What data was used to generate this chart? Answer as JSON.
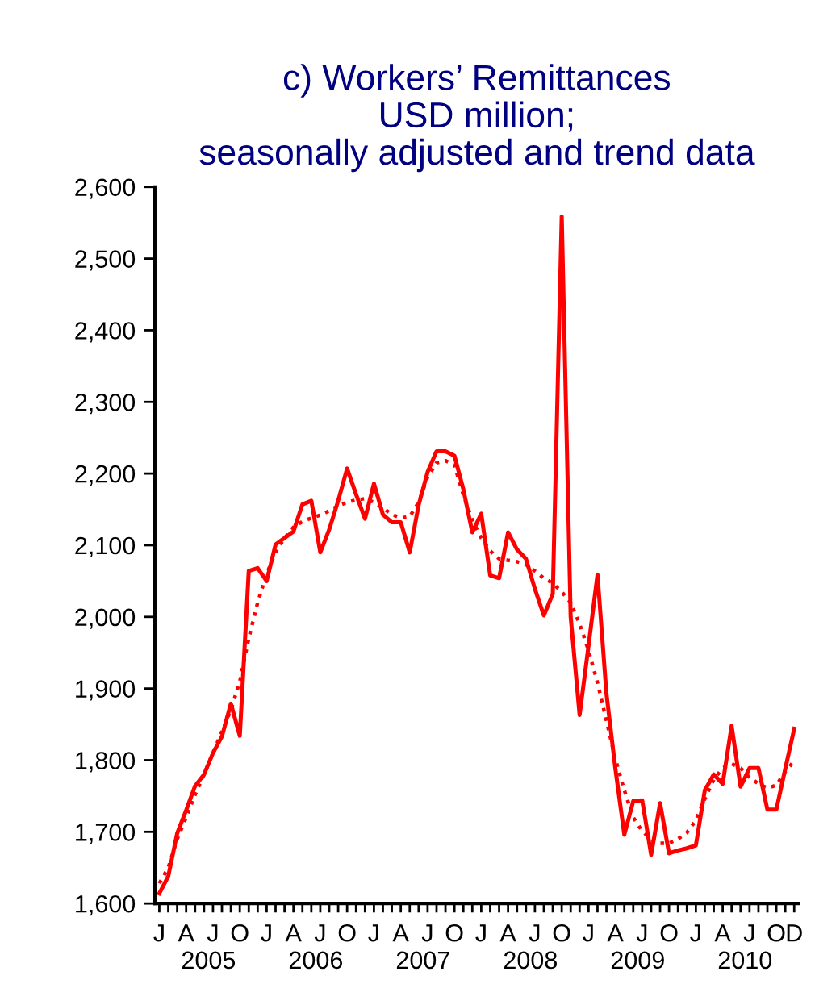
{
  "chart_data": {
    "type": "line",
    "title": "c) Workers’ Remittances\nUSD million;\nseasonally adjusted and trend data",
    "categories": [
      "J",
      null,
      null,
      "A",
      null,
      null,
      "J",
      null,
      null,
      "O",
      null,
      null,
      "J",
      null,
      null,
      "A",
      null,
      null,
      "J",
      null,
      null,
      "O",
      null,
      null,
      "J",
      null,
      null,
      "A",
      null,
      null,
      "J",
      null,
      null,
      "O",
      null,
      null,
      "J",
      null,
      null,
      "A",
      null,
      null,
      "J",
      null,
      null,
      "O",
      null,
      null,
      "J",
      null,
      null,
      "A",
      null,
      null,
      "J",
      null,
      null,
      "O",
      null,
      null,
      "J",
      null,
      null,
      "A",
      null,
      null,
      "J",
      null,
      null,
      "O",
      null,
      "D"
    ],
    "annotations": [
      "2005",
      "2006",
      "2007",
      "2008",
      "2009",
      "2010"
    ],
    "series": [
      {
        "color": "#ff0000",
        "line_style": "solid",
        "values": [
          1614,
          1638,
          1698,
          1730,
          1764,
          1780,
          1810,
          1833,
          1879,
          1834,
          2064,
          2068,
          2050,
          2101,
          2110,
          2119,
          2157,
          2162,
          2090,
          2122,
          2162,
          2207,
          2171,
          2137,
          2186,
          2143,
          2132,
          2132,
          2090,
          2156,
          2202,
          2231,
          2231,
          2225,
          2178,
          2118,
          2144,
          2058,
          2054,
          2118,
          2094,
          2081,
          2039,
          2002,
          2032,
          2559,
          2000,
          1863,
          1960,
          2059,
          1893,
          1788,
          1696,
          1743,
          1744,
          1668,
          1740,
          1670,
          1674,
          1677,
          1681,
          1758,
          1780,
          1767,
          1848,
          1763,
          1789,
          1789,
          1731,
          1731,
          1788,
          1844
        ]
      },
      {
        "color": "#ff0000",
        "line_style": "dotted",
        "values": [
          1628,
          1650,
          1690,
          1720,
          1752,
          1780,
          1810,
          1840,
          1870,
          1910,
          1970,
          2020,
          2060,
          2090,
          2110,
          2125,
          2133,
          2138,
          2142,
          2148,
          2155,
          2160,
          2163,
          2165,
          2160,
          2152,
          2143,
          2138,
          2140,
          2160,
          2195,
          2215,
          2218,
          2212,
          2170,
          2135,
          2110,
          2092,
          2081,
          2079,
          2077,
          2073,
          2064,
          2054,
          2047,
          2035,
          2020,
          1990,
          1953,
          1908,
          1855,
          1802,
          1758,
          1720,
          1701,
          1690,
          1684,
          1684,
          1690,
          1699,
          1716,
          1746,
          1773,
          1789,
          1795,
          1789,
          1776,
          1767,
          1761,
          1765,
          1784,
          1799
        ]
      }
    ],
    "ylim": [
      1600,
      2600
    ],
    "yticks": [
      {
        "value": 1600,
        "label": "1,600"
      },
      {
        "value": 1700,
        "label": "1,700"
      },
      {
        "value": 1800,
        "label": "1,800"
      },
      {
        "value": 1900,
        "label": "1,900"
      },
      {
        "value": 2000,
        "label": "2,000"
      },
      {
        "value": 2100,
        "label": "2,100"
      },
      {
        "value": 2200,
        "label": "2,200"
      },
      {
        "value": 2300,
        "label": "2,300"
      },
      {
        "value": 2400,
        "label": "2,400"
      },
      {
        "value": 2500,
        "label": "2,500"
      },
      {
        "value": 2600,
        "label": "2,600"
      }
    ],
    "grid": false,
    "marker": "none"
  }
}
